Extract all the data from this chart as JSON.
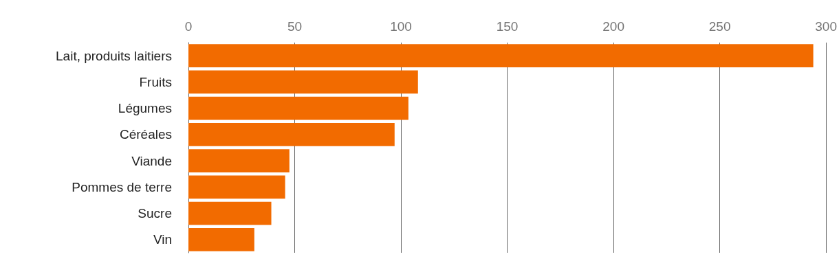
{
  "chart_data": {
    "type": "bar",
    "orientation": "horizontal",
    "categories": [
      "Lait, produits laitiers",
      "Fruits",
      "Légumes",
      "Céréales",
      "Viande",
      "Pommes de terre",
      "Sucre",
      "Vin"
    ],
    "values": [
      294,
      108,
      103.5,
      97,
      47.5,
      45.5,
      39,
      31
    ],
    "color": "#f26b00",
    "xlim": [
      0,
      300
    ],
    "xticks": [
      0,
      50,
      100,
      150,
      200,
      250,
      300
    ],
    "grid": "x"
  }
}
